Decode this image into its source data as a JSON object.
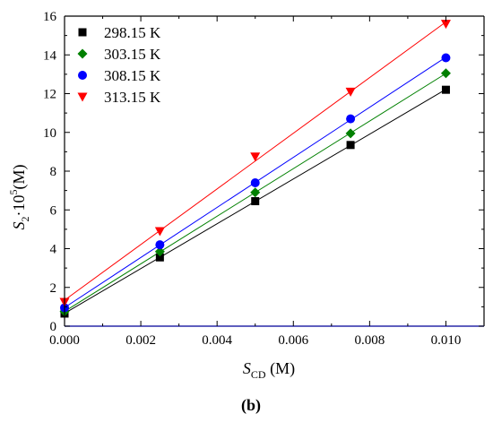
{
  "panel_label": "(b)",
  "chart_data": {
    "type": "scatter",
    "title": "",
    "xlabel": "S_CD (M)",
    "ylabel": "S_2·10^5(M)",
    "xlabel_parts": {
      "symbol": "S",
      "sub": "CD",
      "unit": " (M)"
    },
    "ylabel_parts": {
      "symbol": "S",
      "sub": "2",
      "mid": "·10",
      "sup": "5",
      "unit": "(M)"
    },
    "xlim": [
      0.0,
      0.011
    ],
    "ylim": [
      0,
      16
    ],
    "x_ticks": [
      "0.000",
      "0.002",
      "0.004",
      "0.006",
      "0.008",
      "0.010"
    ],
    "y_ticks": [
      "0",
      "2",
      "4",
      "6",
      "8",
      "10",
      "12",
      "14",
      "16"
    ],
    "x_tick_values": [
      0.0,
      0.002,
      0.004,
      0.006,
      0.008,
      0.01
    ],
    "y_tick_values": [
      0,
      2,
      4,
      6,
      8,
      10,
      12,
      14,
      16
    ],
    "grid": false,
    "legend_position": "top-left",
    "fit_lines": true,
    "x": [
      0.0,
      0.0025,
      0.005,
      0.0075,
      0.01
    ],
    "series": [
      {
        "name": "298.15 K",
        "marker": "square",
        "color": "#000000",
        "values": [
          0.65,
          3.55,
          6.45,
          9.35,
          12.2
        ]
      },
      {
        "name": "303.15 K",
        "marker": "diamond",
        "color": "#008000",
        "values": [
          0.75,
          3.85,
          6.9,
          9.95,
          13.05
        ]
      },
      {
        "name": "308.15 K",
        "marker": "circle",
        "color": "#0000ff",
        "values": [
          0.95,
          4.2,
          7.4,
          10.7,
          13.85
        ]
      },
      {
        "name": "313.15 K",
        "marker": "triangle-down",
        "color": "#ff0000",
        "values": [
          1.25,
          4.9,
          8.75,
          12.1,
          15.6
        ]
      }
    ]
  }
}
